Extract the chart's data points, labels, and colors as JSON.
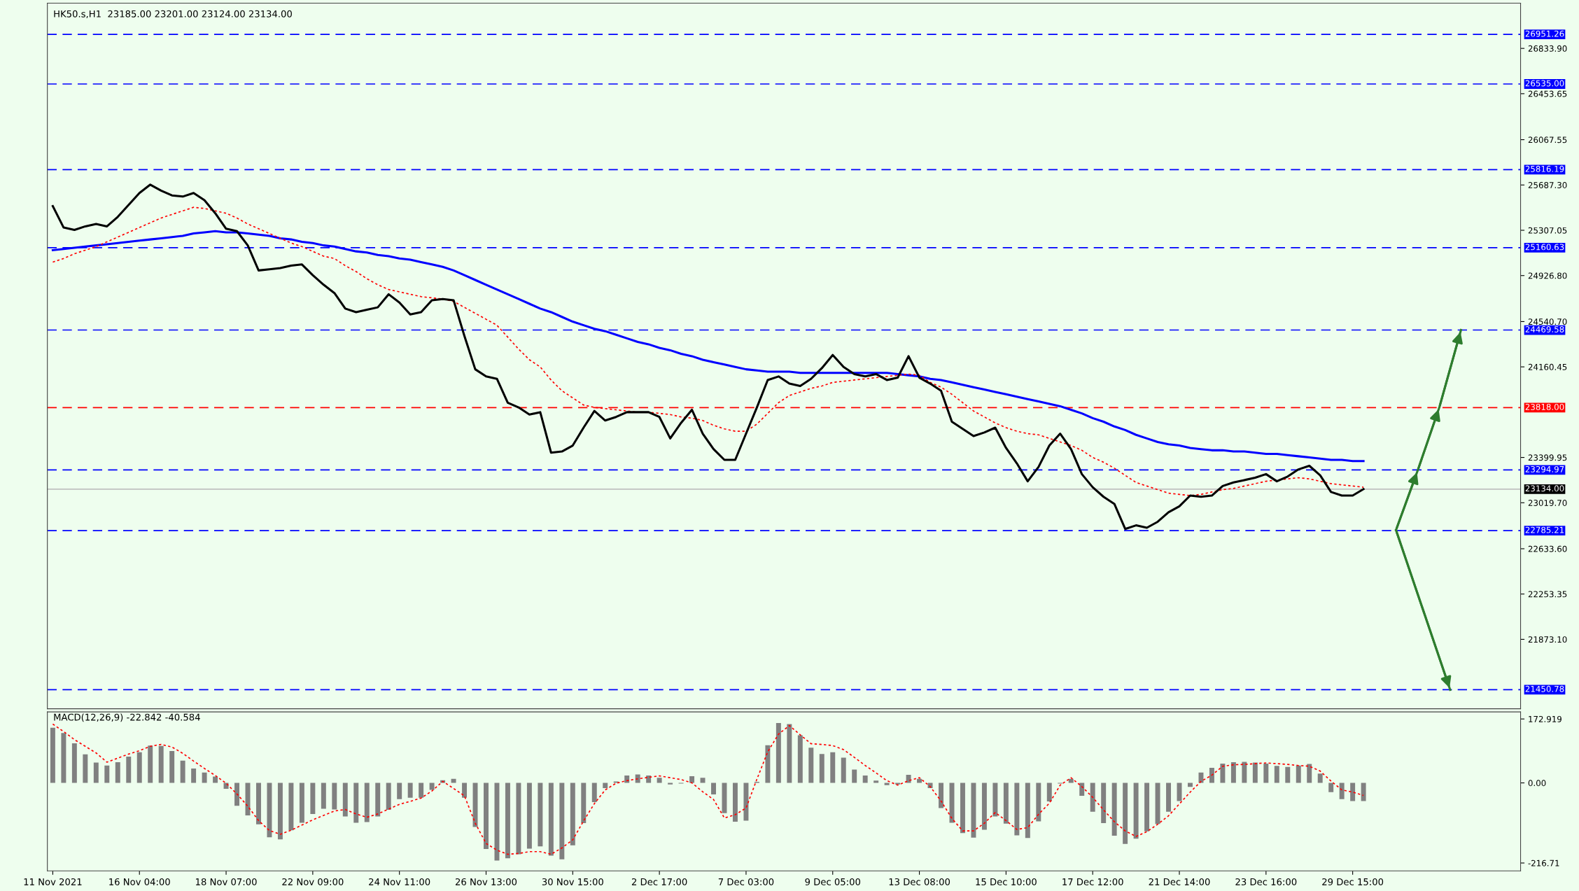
{
  "chart_data": [
    {
      "type": "line",
      "title": "HK50.s,H1  23185.00 23201.00 23124.00 23134.00",
      "tick_labels": "y",
      "ylim": [
        21290,
        27214
      ],
      "categories": [
        null,
        null,
        null,
        null,
        null,
        null,
        null,
        null,
        null,
        null,
        null,
        null,
        null,
        null,
        null,
        null,
        null,
        null,
        null,
        null,
        null,
        null,
        null,
        null,
        null,
        null,
        null,
        null,
        null,
        null,
        null,
        null,
        null,
        null,
        null,
        null,
        null,
        null,
        null,
        null,
        null,
        null,
        null,
        null,
        null,
        null,
        null,
        null,
        null,
        null,
        null,
        null,
        null,
        null,
        null,
        null,
        null,
        null,
        null,
        null,
        null,
        null,
        null,
        null,
        null,
        null,
        null,
        null,
        null,
        null,
        null,
        null,
        null,
        null,
        null,
        null,
        null,
        null,
        null,
        null,
        null,
        null,
        null,
        null,
        null,
        null,
        null,
        null,
        null,
        null,
        null,
        null,
        null,
        null,
        null,
        null,
        null,
        null,
        null,
        null,
        null,
        null,
        null,
        null,
        null,
        null,
        null,
        null,
        null,
        null,
        null,
        null,
        null,
        null,
        null,
        null,
        null,
        null,
        null,
        null,
        null,
        null,
        null,
        null,
        null,
        null,
        null,
        null,
        null,
        null,
        null,
        null,
        null,
        null,
        null,
        null
      ],
      "yticks": [
        {
          "value": 26833.9,
          "label": "26833.90"
        },
        {
          "value": 26453.65,
          "label": "26453.65"
        },
        {
          "value": 26067.55,
          "label": "26067.55"
        },
        {
          "value": 25687.3,
          "label": "25687.30"
        },
        {
          "value": 25307.05,
          "label": "25307.05"
        },
        {
          "value": 24926.8,
          "label": "24926.80"
        },
        {
          "value": 24540.7,
          "label": "24540.70"
        },
        {
          "value": 24160.45,
          "label": "24160.45"
        },
        {
          "value": 23399.95,
          "label": "23399.95"
        },
        {
          "value": 23019.7,
          "label": "23019.70"
        },
        {
          "value": 22633.6,
          "label": "22633.60"
        },
        {
          "value": 22253.35,
          "label": "22253.35"
        },
        {
          "value": 21873.1,
          "label": "21873.10"
        }
      ],
      "ref_lines": [
        {
          "axis": "y",
          "value": 26951.26,
          "label": "26951.26",
          "color": "#0000ff",
          "line_style": "dashed"
        },
        {
          "axis": "y",
          "value": 26535.0,
          "label": "26535.00",
          "color": "#0000ff",
          "line_style": "dashed"
        },
        {
          "axis": "y",
          "value": 25816.19,
          "label": "25816.19",
          "color": "#0000ff",
          "line_style": "dashed"
        },
        {
          "axis": "y",
          "value": 25160.63,
          "label": "25160.63",
          "color": "#0000ff",
          "line_style": "dashed"
        },
        {
          "axis": "y",
          "value": 24469.58,
          "label": "24469.58",
          "color": "#0000ff",
          "line_style": "dashed"
        },
        {
          "axis": "y",
          "value": 23818.0,
          "label": "23818.00",
          "color": "#ff0000",
          "line_style": "dashed"
        },
        {
          "axis": "y",
          "value": 23294.97,
          "label": "23294.97",
          "color": "#0000ff",
          "line_style": "dashed"
        },
        {
          "axis": "y",
          "value": 23134.0,
          "label": "23134.00",
          "color": "#c0c0c0",
          "line_style": "solid"
        },
        {
          "axis": "y",
          "value": 22785.21,
          "label": "22785.21",
          "color": "#0000ff",
          "line_style": "dashed"
        },
        {
          "axis": "y",
          "value": 21450.78,
          "label": "21450.78",
          "color": "#0000ff",
          "line_style": "dashed"
        }
      ],
      "series": [
        {
          "color": "#0000ff",
          "line_style": "solid",
          "values": [
            25140,
            25150,
            25160,
            25170,
            25180,
            25190,
            25200,
            25210,
            25220,
            25230,
            25240,
            25250,
            25260,
            25280,
            25290,
            25300,
            25290,
            25290,
            25280,
            25270,
            25260,
            25240,
            25230,
            25210,
            25200,
            25180,
            25170,
            25150,
            25130,
            25120,
            25100,
            25090,
            25070,
            25060,
            25040,
            25020,
            25000,
            24970,
            24930,
            24890,
            24850,
            24810,
            24770,
            24730,
            24690,
            24650,
            24620,
            24580,
            24540,
            24510,
            24480,
            24460,
            24430,
            24400,
            24370,
            24350,
            24320,
            24300,
            24270,
            24250,
            24220,
            24200,
            24180,
            24160,
            24140,
            24130,
            24120,
            24120,
            24120,
            24110,
            24110,
            24110,
            24110,
            24110,
            24110,
            24110,
            24110,
            24110,
            24100,
            24090,
            24080,
            24060,
            24050,
            24030,
            24010,
            23990,
            23970,
            23950,
            23930,
            23910,
            23890,
            23870,
            23850,
            23830,
            23800,
            23770,
            23730,
            23700,
            23660,
            23630,
            23590,
            23560,
            23530,
            23510,
            23500,
            23480,
            23470,
            23460,
            23460,
            23450,
            23450,
            23440,
            23430,
            23430,
            23420,
            23410,
            23400,
            23390,
            23380,
            23380,
            23370,
            23370,
            null,
            null,
            null,
            null,
            null,
            null,
            null,
            null,
            null,
            null,
            null,
            null,
            null,
            null
          ]
        },
        {
          "color": "#ff0000",
          "line_style": "dotted",
          "values": [
            25040,
            25070,
            25110,
            25140,
            25170,
            25210,
            25250,
            25290,
            25330,
            25370,
            25410,
            25440,
            25470,
            25500,
            25490,
            25470,
            25450,
            25410,
            25360,
            25320,
            25280,
            25240,
            25200,
            25170,
            25130,
            25090,
            25070,
            25010,
            24960,
            24900,
            24850,
            24810,
            24790,
            24770,
            24750,
            24740,
            24730,
            24710,
            24660,
            24610,
            24560,
            24510,
            24410,
            24310,
            24220,
            24160,
            24050,
            23960,
            23900,
            23840,
            23820,
            23810,
            23800,
            23790,
            23780,
            23780,
            23770,
            23760,
            23740,
            23730,
            23710,
            23670,
            23640,
            23620,
            23620,
            23680,
            23770,
            23860,
            23920,
            23950,
            23980,
            24000,
            24030,
            24040,
            24050,
            24060,
            24070,
            24080,
            24090,
            24100,
            24090,
            24030,
            23990,
            23930,
            23860,
            23790,
            23740,
            23690,
            23650,
            23620,
            23600,
            23590,
            23560,
            23530,
            23500,
            23460,
            23400,
            23360,
            23310,
            23250,
            23190,
            23160,
            23130,
            23100,
            23090,
            23080,
            23090,
            23110,
            23130,
            23140,
            23160,
            23180,
            23200,
            23210,
            23220,
            23230,
            23220,
            23200,
            23180,
            23170,
            23160,
            23150,
            null,
            null,
            null,
            null,
            null,
            null,
            null,
            null,
            null,
            null,
            null,
            null,
            null,
            null
          ]
        },
        {
          "color": "#000000",
          "line_style": "solid",
          "values": [
            25510,
            25330,
            25310,
            25340,
            25360,
            25340,
            25420,
            25520,
            25620,
            25690,
            25640,
            25600,
            25590,
            25620,
            25560,
            25450,
            25320,
            25300,
            25180,
            24970,
            24980,
            24990,
            25010,
            25020,
            24930,
            24850,
            24780,
            24650,
            24620,
            24640,
            24660,
            24770,
            24700,
            24600,
            24620,
            24720,
            24730,
            24720,
            24420,
            24140,
            24080,
            24060,
            23860,
            23820,
            23760,
            23780,
            23440,
            23450,
            23500,
            23650,
            23790,
            23710,
            23740,
            23780,
            23780,
            23780,
            23740,
            23560,
            23690,
            23800,
            23600,
            23470,
            23380,
            23380,
            23600,
            23820,
            24050,
            24080,
            24020,
            24000,
            24060,
            24150,
            24260,
            24160,
            24100,
            24080,
            24100,
            24050,
            24070,
            24250,
            24070,
            24020,
            23960,
            23700,
            23640,
            23580,
            23610,
            23650,
            23480,
            23350,
            23200,
            23320,
            23500,
            23600,
            23470,
            23260,
            23150,
            23070,
            23010,
            22800,
            22830,
            22810,
            22860,
            22940,
            22990,
            23080,
            23070,
            23080,
            23160,
            23190,
            23210,
            23230,
            23260,
            23200,
            23240,
            23300,
            23330,
            23250,
            23110,
            23080,
            23080,
            23134,
            null,
            null,
            null,
            null,
            null,
            null,
            null,
            null,
            null,
            null,
            null,
            null,
            null,
            null
          ]
        },
        {
          "color": "#2e7d2e",
          "line_style": "solid",
          "values": [
            null,
            null,
            null,
            null,
            null,
            null,
            null,
            null,
            null,
            null,
            null,
            null,
            null,
            null,
            null,
            null,
            null,
            null,
            null,
            null,
            null,
            null,
            null,
            null,
            null,
            null,
            null,
            null,
            null,
            null,
            null,
            null,
            null,
            null,
            null,
            null,
            null,
            null,
            null,
            null,
            null,
            null,
            null,
            null,
            null,
            null,
            null,
            null,
            null,
            null,
            null,
            null,
            null,
            null,
            null,
            null,
            null,
            null,
            null,
            null,
            null,
            null,
            null,
            null,
            null,
            null,
            null,
            null,
            null,
            null,
            null,
            null,
            null,
            null,
            null,
            null,
            null,
            null,
            null,
            null,
            null,
            null,
            null,
            null,
            null,
            null,
            null,
            null,
            null,
            null,
            null,
            null,
            null,
            null,
            null,
            null,
            null,
            null,
            null,
            null,
            null,
            null,
            null,
            null,
            null,
            null,
            null,
            null,
            null,
            null,
            null,
            null,
            null,
            null,
            null,
            null,
            null,
            null,
            null,
            null,
            null,
            null,
            null,
            null,
            22790,
            null,
            23290,
            null,
            23820,
            null,
            24470,
            null,
            null,
            null,
            null,
            null
          ]
        },
        {
          "color": "#2e7d2e",
          "line_style": "solid",
          "values": [
            null,
            null,
            null,
            null,
            null,
            null,
            null,
            null,
            null,
            null,
            null,
            null,
            null,
            null,
            null,
            null,
            null,
            null,
            null,
            null,
            null,
            null,
            null,
            null,
            null,
            null,
            null,
            null,
            null,
            null,
            null,
            null,
            null,
            null,
            null,
            null,
            null,
            null,
            null,
            null,
            null,
            null,
            null,
            null,
            null,
            null,
            null,
            null,
            null,
            null,
            null,
            null,
            null,
            null,
            null,
            null,
            null,
            null,
            null,
            null,
            null,
            null,
            null,
            null,
            null,
            null,
            null,
            null,
            null,
            null,
            null,
            null,
            null,
            null,
            null,
            null,
            null,
            null,
            null,
            null,
            null,
            null,
            null,
            null,
            null,
            null,
            null,
            null,
            null,
            null,
            null,
            null,
            null,
            null,
            null,
            null,
            null,
            null,
            null,
            null,
            null,
            null,
            null,
            null,
            null,
            null,
            null,
            null,
            null,
            null,
            null,
            null,
            null,
            null,
            null,
            null,
            null,
            null,
            null,
            null,
            null,
            null,
            null,
            null,
            22790,
            null,
            null,
            null,
            null,
            21450,
            null,
            null,
            null,
            null,
            null,
            null
          ]
        }
      ]
    },
    {
      "type": "bar",
      "title": "MACD(12,26,9) -22.842 -40.584",
      "ylim": [
        -238,
        192
      ],
      "categories": [
        "11 Nov 2021",
        null,
        null,
        null,
        null,
        null,
        null,
        null,
        "16 Nov 04:00",
        null,
        null,
        null,
        null,
        null,
        null,
        null,
        "18 Nov 07:00",
        null,
        null,
        null,
        null,
        null,
        null,
        null,
        "22 Nov 09:00",
        null,
        null,
        null,
        null,
        null,
        null,
        null,
        "24 Nov 11:00",
        null,
        null,
        null,
        null,
        null,
        null,
        null,
        "26 Nov 13:00",
        null,
        null,
        null,
        null,
        null,
        null,
        null,
        "30 Nov 15:00",
        null,
        null,
        null,
        null,
        null,
        null,
        null,
        "2 Dec 17:00",
        null,
        null,
        null,
        null,
        null,
        null,
        null,
        "7 Dec 03:00",
        null,
        null,
        null,
        null,
        null,
        null,
        null,
        "9 Dec 05:00",
        null,
        null,
        null,
        null,
        null,
        null,
        null,
        "13 Dec 08:00",
        null,
        null,
        null,
        null,
        null,
        null,
        null,
        "15 Dec 10:00",
        null,
        null,
        null,
        null,
        null,
        null,
        null,
        "17 Dec 12:00",
        null,
        null,
        null,
        null,
        null,
        null,
        null,
        "21 Dec 14:00",
        null,
        null,
        null,
        null,
        null,
        null,
        null,
        "23 Dec 16:00",
        null,
        null,
        null,
        null,
        null,
        null,
        null,
        "29 Dec 15:00",
        null,
        null,
        null,
        null,
        null,
        null,
        null,
        null,
        null,
        null,
        null,
        null,
        null,
        null,
        null
      ],
      "yticks": [
        {
          "value": 172.919,
          "label": "172.919"
        },
        {
          "value": 0,
          "label": "0.00"
        },
        {
          "value": -216.71,
          "label": "-216.71"
        }
      ],
      "series": [
        {
          "color": "#808080",
          "values": [
            149,
            135,
            107,
            77,
            55,
            47,
            56,
            71,
            83,
            101,
            100,
            86,
            60,
            39,
            28,
            17,
            -16,
            -62,
            -88,
            -112,
            -147,
            -153,
            -128,
            -108,
            -84,
            -70,
            -72,
            -91,
            -108,
            -106,
            -91,
            -73,
            -44,
            -40,
            -40,
            -19,
            7,
            11,
            -40,
            -119,
            -179,
            -210,
            -204,
            -193,
            -178,
            -172,
            -197,
            -207,
            -169,
            -109,
            -52,
            -14,
            4,
            20,
            23,
            20,
            14,
            -4,
            -2,
            18,
            14,
            -31,
            -82,
            -105,
            -102,
            3,
            102,
            162,
            159,
            129,
            95,
            78,
            83,
            68,
            36,
            20,
            6,
            -6,
            -4,
            22,
            11,
            -14,
            -68,
            -108,
            -136,
            -148,
            -127,
            -91,
            -110,
            -142,
            -149,
            -104,
            -50,
            -2,
            11,
            -35,
            -78,
            -109,
            -143,
            -165,
            -151,
            -131,
            -111,
            -78,
            -49,
            -11,
            28,
            41,
            52,
            56,
            57,
            55,
            52,
            46,
            43,
            47,
            51,
            25,
            -25,
            -44,
            -49,
            -49,
            null,
            null,
            null,
            null,
            null,
            null,
            null,
            null,
            null,
            null,
            null,
            null,
            null,
            null
          ]
        },
        {
          "type": "line",
          "color": "#ff0000",
          "line_style": "dotted",
          "values": [
            159,
            139,
            117,
            99,
            81,
            56,
            67,
            78,
            87,
            99,
            104,
            97,
            80,
            59,
            39,
            20,
            -1,
            -30,
            -63,
            -102,
            -129,
            -139,
            -128,
            -114,
            -100,
            -88,
            -76,
            -72,
            -84,
            -93,
            -84,
            -71,
            -58,
            -50,
            -41,
            -22,
            4,
            -15,
            -35,
            -109,
            -164,
            -182,
            -193,
            -191,
            -186,
            -186,
            -193,
            -176,
            -154,
            -103,
            -56,
            -19,
            -1,
            6,
            11,
            15,
            19,
            14,
            9,
            0,
            -24,
            -45,
            -95,
            -86,
            -68,
            10,
            84,
            132,
            155,
            130,
            106,
            104,
            101,
            90,
            69,
            47,
            27,
            6,
            -6,
            6,
            14,
            -10,
            -49,
            -96,
            -130,
            -130,
            -109,
            -80,
            -102,
            -126,
            -121,
            -85,
            -55,
            -6,
            14,
            -10,
            -39,
            -73,
            -105,
            -130,
            -145,
            -132,
            -112,
            -89,
            -57,
            -25,
            4,
            21,
            45,
            49,
            50,
            52,
            54,
            52,
            50,
            47,
            45,
            32,
            5,
            -19,
            -25,
            -34,
            null,
            null,
            null,
            null,
            null,
            null,
            null,
            null,
            null,
            null,
            null,
            null,
            null,
            null
          ]
        }
      ]
    }
  ]
}
